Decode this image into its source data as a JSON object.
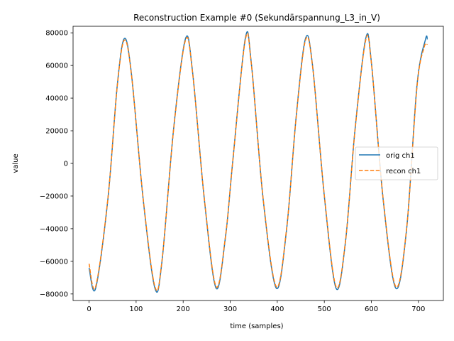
{
  "chart_data": {
    "type": "line",
    "title": "Reconstruction Example #0 (Sekundärspannung_L3_in_V)",
    "xlabel": "time (samples)",
    "ylabel": "value",
    "xlim": [
      -34,
      753
    ],
    "ylim": [
      -84000,
      84000
    ],
    "xticks": [
      0,
      100,
      200,
      300,
      400,
      500,
      600,
      700
    ],
    "yticks": [
      -80000,
      -60000,
      -40000,
      -20000,
      0,
      20000,
      40000,
      60000,
      80000
    ],
    "xtick_labels": [
      "0",
      "100",
      "200",
      "300",
      "400",
      "500",
      "600",
      "700"
    ],
    "ytick_labels": [
      "−80000",
      "−60000",
      "−40000",
      "−20000",
      "0",
      "20000",
      "40000",
      "60000",
      "80000"
    ],
    "grid": false,
    "legend_position": "center-right",
    "series": [
      {
        "name": "orig ch1",
        "color": "#1f77b4",
        "style": "solid",
        "x": [
          0,
          14,
          40,
          60,
          75,
          90,
          115,
          140,
          155,
          180,
          205,
          220,
          245,
          270,
          290,
          305,
          332,
          345,
          370,
          398,
          420,
          440,
          460,
          475,
          500,
          525,
          545,
          565,
          588,
          600,
          625,
          652,
          675,
          697,
          715,
          719
        ],
        "y": [
          -64000,
          -76500,
          -22000,
          48000,
          76500,
          55000,
          -22000,
          -76500,
          -60000,
          22000,
          76500,
          56000,
          -22000,
          -76500,
          -45000,
          0,
          76500,
          61000,
          -22000,
          -76500,
          -40000,
          28000,
          76500,
          60000,
          -20000,
          -76500,
          -48000,
          20000,
          76500,
          62000,
          -22000,
          -76500,
          -40000,
          48000,
          76000,
          76000
        ]
      },
      {
        "name": "recon ch1",
        "color": "#ff7f0e",
        "style": "dashed",
        "x": [
          0,
          14,
          40,
          60,
          75,
          90,
          115,
          140,
          155,
          180,
          205,
          220,
          245,
          270,
          290,
          305,
          332,
          345,
          370,
          398,
          420,
          440,
          460,
          475,
          500,
          525,
          545,
          565,
          588,
          600,
          625,
          652,
          675,
          697,
          712,
          719
        ],
        "y": [
          -61500,
          -75500,
          -21500,
          47500,
          75500,
          54500,
          -21500,
          -75500,
          -59500,
          21500,
          75500,
          55500,
          -21500,
          -75500,
          -44500,
          0,
          75500,
          60500,
          -21500,
          -75500,
          -39500,
          27500,
          75500,
          59500,
          -19500,
          -75500,
          -47500,
          19500,
          75500,
          61500,
          -21500,
          -75500,
          -39500,
          47000,
          71000,
          73000
        ]
      }
    ]
  }
}
